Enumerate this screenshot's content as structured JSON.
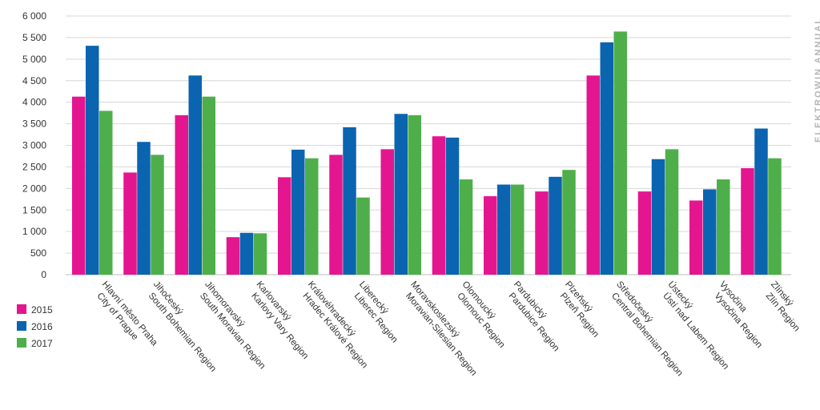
{
  "colors": {
    "s2015": "#e4168f",
    "s2016": "#0b64b0",
    "s2017": "#4eaf4a",
    "grid": "#d7d7d7"
  },
  "side_text": "ELEKTROWIN ANNUAL",
  "chart_data": {
    "type": "bar",
    "categories": [
      {
        "cz": "Hlavní město Praha",
        "en": "City of Prague"
      },
      {
        "cz": "Jihočeský",
        "en": "South Bohemian Region"
      },
      {
        "cz": "Jihomoravský",
        "en": "South Moravian Region"
      },
      {
        "cz": "Karlovarský",
        "en": "Karlovy Vary Region"
      },
      {
        "cz": "Královéhradecký",
        "en": "Hradec Králové Region"
      },
      {
        "cz": "Liberecký",
        "en": "Liberec Region"
      },
      {
        "cz": "Moravskoslezský",
        "en": "Moravian-Silesian Region"
      },
      {
        "cz": "Olomoucký",
        "en": "Olomouc Region"
      },
      {
        "cz": "Pardubický",
        "en": "Pardubice Region"
      },
      {
        "cz": "Plzeňský",
        "en": "Plzeň Region"
      },
      {
        "cz": "Středočeský",
        "en": "Central Bohemian Region"
      },
      {
        "cz": "Ústecký",
        "en": "Ústí nad Labem Region"
      },
      {
        "cz": "Vysočina",
        "en": "Vysočina Region"
      },
      {
        "cz": "Zlínský",
        "en": "Zlín Region"
      }
    ],
    "series": [
      {
        "name": "2015",
        "color": "#e4168f",
        "values": [
          4130,
          2370,
          3700,
          870,
          2260,
          2780,
          2910,
          3210,
          1820,
          1930,
          4620,
          1930,
          1720,
          2470
        ]
      },
      {
        "name": "2016",
        "color": "#0b64b0",
        "values": [
          5310,
          3080,
          4620,
          970,
          2900,
          3420,
          3730,
          3180,
          2090,
          2270,
          5390,
          2680,
          1980,
          3390
        ]
      },
      {
        "name": "2017",
        "color": "#4eaf4a",
        "values": [
          3800,
          2780,
          4130,
          960,
          2700,
          1790,
          3700,
          2210,
          2090,
          2430,
          5640,
          2910,
          2210,
          2700
        ]
      }
    ],
    "y_ticks": [
      "0",
      "500",
      "1 000",
      "1 500",
      "2 000",
      "2 500",
      "3 000",
      "3 500",
      "4 000",
      "4 500",
      "5 000",
      "5 500",
      "6 000"
    ],
    "ylim": [
      0,
      6000
    ],
    "grid": true,
    "legend_placement": "bottom-left",
    "title": "",
    "xlabel": "",
    "ylabel": ""
  }
}
